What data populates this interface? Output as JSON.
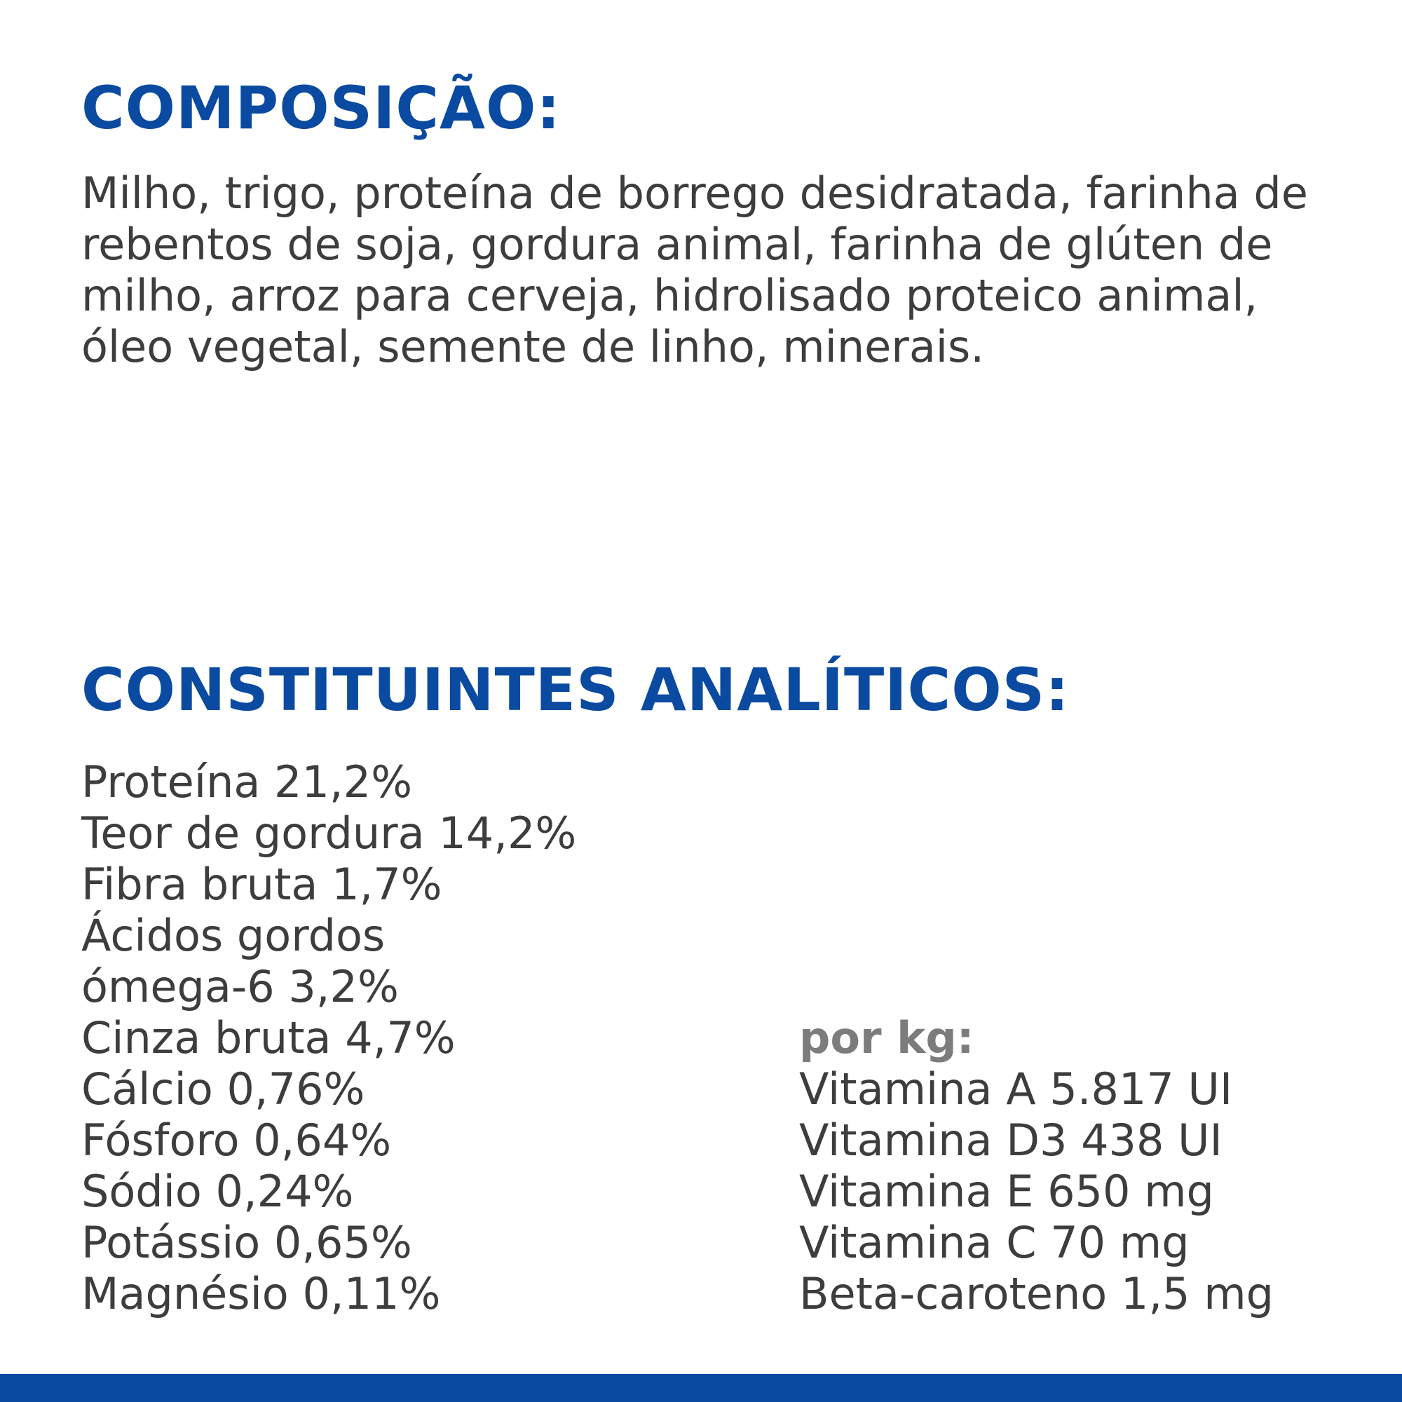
{
  "composition": {
    "title": "COMPOSIÇÃO:",
    "text": "Milho, trigo, proteína de borrego desidratada, farinha de rebentos de soja, gordura animal, farinha de glúten de milho, arroz para cerveja, hidrolisado proteico animal, óleo vegetal, semente de linho, minerais."
  },
  "constituents": {
    "title": "CONSTITUINTES ANALÍTICOS:",
    "items": [
      "Proteína 21,2%",
      "Teor de gordura 14,2%",
      "Fibra bruta 1,7%",
      "Ácidos gordos",
      "ómega-6 3,2%",
      "Cinza bruta 4,7%",
      "Cálcio 0,76%",
      "Fósforo 0,64%",
      "Sódio 0,24%",
      "Potássio 0,65%",
      "Magnésio 0,11%"
    ]
  },
  "per_kg": {
    "label": "por kg:",
    "items": [
      "Vitamina A 5.817 UI",
      "Vitamina D3 438 UI",
      "Vitamina E 650 mg",
      "Vitamina C 70 mg",
      "Beta-caroteno 1,5 mg"
    ]
  },
  "colors": {
    "heading": "#0a4aa0",
    "body_text": "#3d3d3d",
    "label_gray": "#7c7c7c",
    "bottom_bar": "#0a4aa0"
  }
}
